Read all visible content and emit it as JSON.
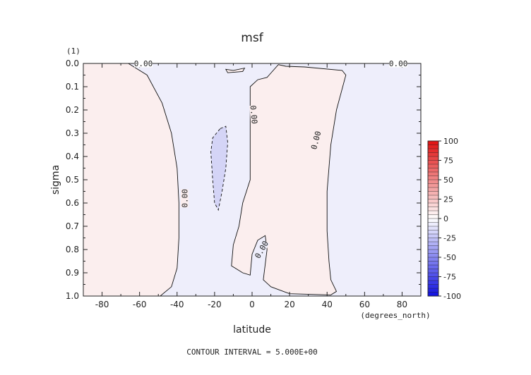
{
  "chart_data": {
    "type": "contour",
    "title": "msf",
    "xlabel": "latitude",
    "x_units": "(degrees_north)",
    "ylabel": "sigma",
    "y_units": "(1)",
    "xlim": [
      -90,
      90
    ],
    "ylim": [
      1.0,
      0.0
    ],
    "x_ticks": [
      -80,
      -60,
      -40,
      -20,
      0,
      20,
      40,
      60,
      80
    ],
    "x_tick_labels": [
      "-80",
      "-60",
      "-40",
      "-20",
      "0",
      "20",
      "40",
      "60",
      "80"
    ],
    "y_ticks": [
      0.0,
      0.1,
      0.2,
      0.3,
      0.4,
      0.5,
      0.6,
      0.7,
      0.8,
      0.9,
      1.0
    ],
    "y_tick_labels": [
      "0.0",
      "0.1",
      "0.2",
      "0.3",
      "0.4",
      "0.5",
      "0.6",
      "0.7",
      "0.8",
      "0.9",
      "1.0"
    ],
    "footer": "CONTOUR INTERVAL = 5.000E+00",
    "contour_interval": 5.0,
    "colorbar": {
      "min": -100,
      "max": 100,
      "tick_values": [
        100,
        75,
        50,
        25,
        0,
        -25,
        -50,
        -75,
        -100
      ],
      "tick_labels": [
        "100",
        "75",
        "50",
        "25",
        "0",
        "-25",
        "-50",
        "-75",
        "-100"
      ],
      "positive_color": "#e01010",
      "negative_color": "#1010e0"
    },
    "background_color": "#eeeefb",
    "positive_fill": "#fbeeee",
    "negative_fill": "#d4d4f6",
    "contour_labels": [
      {
        "text": "0.00",
        "lat": -58,
        "sigma": 0.0,
        "rotate": 0
      },
      {
        "text": "0.00",
        "lat": 78,
        "sigma": 0.0,
        "rotate": 0
      },
      {
        "text": "0.00",
        "lat": -36,
        "sigma": 0.58,
        "rotate": -90
      },
      {
        "text": "0.00",
        "lat": 1,
        "sigma": 0.22,
        "rotate": 85
      },
      {
        "text": "0.00",
        "lat": 34,
        "sigma": 0.33,
        "rotate": -75
      },
      {
        "text": "0.00",
        "lat": 5,
        "sigma": 0.8,
        "rotate": -60
      }
    ],
    "regions": [
      {
        "sign": "positive",
        "dashed": false,
        "points": [
          [
            -90,
            0.0
          ],
          [
            -66,
            0.0
          ],
          [
            -64,
            0.01
          ],
          [
            -56,
            0.05
          ],
          [
            -48,
            0.17
          ],
          [
            -43,
            0.3
          ],
          [
            -40,
            0.45
          ],
          [
            -39,
            0.6
          ],
          [
            -39,
            0.75
          ],
          [
            -40,
            0.88
          ],
          [
            -43,
            0.96
          ],
          [
            -49,
            1.0
          ],
          [
            -90,
            1.0
          ]
        ]
      },
      {
        "sign": "positive",
        "dashed": false,
        "points": [
          [
            14,
            0.005
          ],
          [
            18,
            0.012
          ],
          [
            28,
            0.015
          ],
          [
            48,
            0.03
          ],
          [
            50,
            0.05
          ],
          [
            45,
            0.2
          ],
          [
            42,
            0.35
          ],
          [
            40,
            0.55
          ],
          [
            40,
            0.72
          ],
          [
            41,
            0.85
          ],
          [
            42,
            0.93
          ],
          [
            45,
            0.98
          ],
          [
            42,
            0.995
          ],
          [
            20,
            0.99
          ],
          [
            10,
            0.96
          ],
          [
            6,
            0.93
          ],
          [
            8,
            0.8
          ],
          [
            7,
            0.74
          ],
          [
            3,
            0.76
          ],
          [
            0,
            0.82
          ],
          [
            -1,
            0.91
          ],
          [
            -5,
            0.9
          ],
          [
            -11,
            0.87
          ],
          [
            -10,
            0.78
          ],
          [
            -7,
            0.7
          ],
          [
            -5,
            0.6
          ],
          [
            -1,
            0.5
          ],
          [
            -1,
            0.35
          ],
          [
            -1,
            0.1
          ],
          [
            3,
            0.07
          ],
          [
            8,
            0.06
          ]
        ]
      },
      {
        "sign": "positive",
        "dashed": false,
        "points": [
          [
            -14,
            0.025
          ],
          [
            -10,
            0.03
          ],
          [
            -4,
            0.02
          ],
          [
            -5,
            0.035
          ],
          [
            -13,
            0.04
          ]
        ]
      },
      {
        "sign": "negative",
        "dashed": true,
        "points": [
          [
            -17,
            0.28
          ],
          [
            -14,
            0.27
          ],
          [
            -13,
            0.34
          ],
          [
            -14,
            0.45
          ],
          [
            -16,
            0.55
          ],
          [
            -18,
            0.63
          ],
          [
            -20,
            0.6
          ],
          [
            -21,
            0.5
          ],
          [
            -22,
            0.38
          ],
          [
            -21,
            0.32
          ]
        ]
      }
    ]
  }
}
